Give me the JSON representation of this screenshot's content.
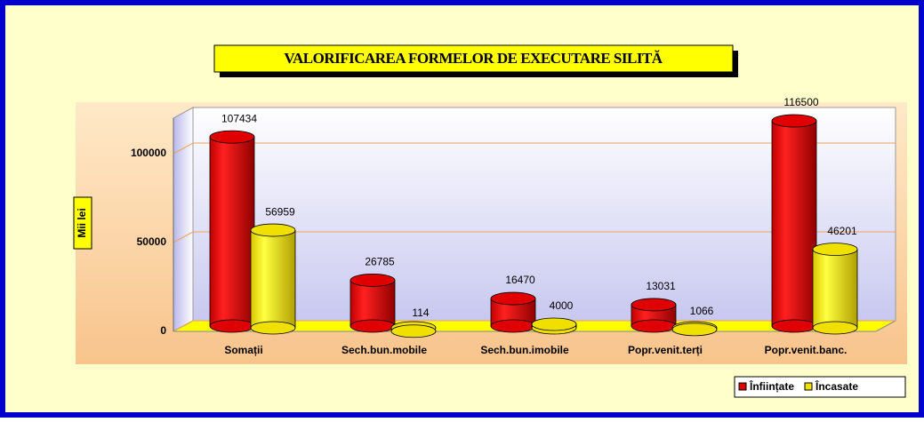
{
  "chart_data": {
    "type": "bar3d",
    "title": "VALORIFICAREA FORMELOR DE EXECUTARE SILITĂ",
    "y_label": "Mii lei",
    "categories": [
      "Somații",
      "Sech.bun.mobile",
      "Sech.bun.imobile",
      "Popr.venit.terți",
      "Popr.venit.banc."
    ],
    "series": [
      {
        "name": "Înființate",
        "color": "#e00000",
        "values": [
          107434,
          26785,
          16470,
          13031,
          116500
        ]
      },
      {
        "name": "Încasate",
        "color": "#f0e000",
        "values": [
          56959,
          114,
          4000,
          1066,
          46201
        ]
      }
    ],
    "ylim": [
      0,
      120000
    ],
    "yticks": [
      0,
      50000,
      100000
    ],
    "grid": true,
    "legend": "bottom-right"
  }
}
